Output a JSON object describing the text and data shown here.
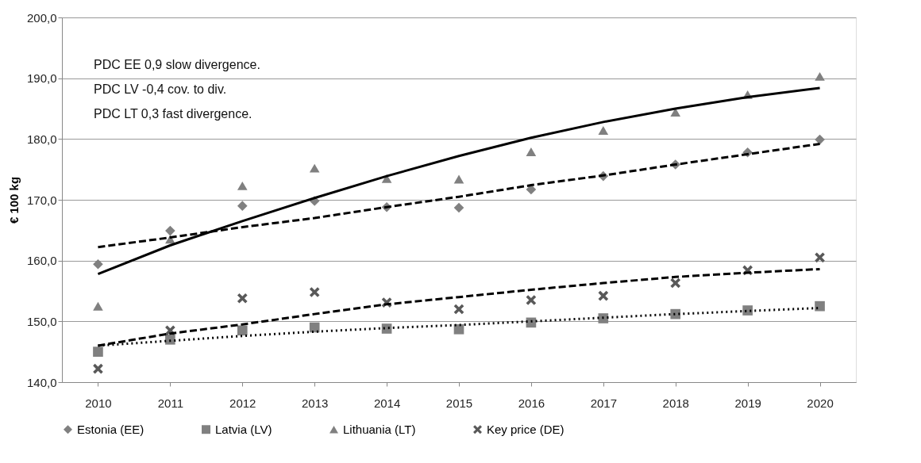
{
  "chart_data": {
    "type": "scatter",
    "ylabel": "€ 100 kg",
    "categories": [
      "2010",
      "2011",
      "2012",
      "2013",
      "2014",
      "2015",
      "2016",
      "2017",
      "2018",
      "2019",
      "2020"
    ],
    "series": [
      {
        "name": "Estonia (EE)",
        "color": "#808080",
        "marker": "diamond",
        "values": [
          159.4,
          164.9,
          169.0,
          169.8,
          168.8,
          168.7,
          171.7,
          173.9,
          175.8,
          177.8,
          179.9
        ]
      },
      {
        "name": "Latvia (LV)",
        "color": "#808080",
        "marker": "square",
        "values": [
          145.0,
          147.0,
          148.5,
          149.0,
          148.8,
          148.7,
          149.8,
          150.5,
          151.2,
          151.8,
          152.5
        ]
      },
      {
        "name": "Lithuania (LT)",
        "color": "#808080",
        "marker": "triangle",
        "values": [
          152.5,
          163.5,
          172.3,
          175.2,
          173.5,
          173.4,
          177.9,
          181.4,
          184.4,
          187.3,
          190.3
        ]
      },
      {
        "name": "Key price (DE)",
        "color": "#595959",
        "marker": "cross",
        "values": [
          142.2,
          148.5,
          153.8,
          154.8,
          153.1,
          152.0,
          153.5,
          154.2,
          156.3,
          158.4,
          160.5
        ]
      },
      {
        "type": "line",
        "color": "#000000",
        "line_style": "dashed",
        "values": [
          162.2,
          163.8,
          165.5,
          167.0,
          168.8,
          170.5,
          172.4,
          174.0,
          175.8,
          177.5,
          179.2
        ]
      },
      {
        "type": "line",
        "color": "#000000",
        "line_style": "dotted",
        "values": [
          146.0,
          146.8,
          147.6,
          148.3,
          148.9,
          149.4,
          150.0,
          150.6,
          151.2,
          151.7,
          152.2
        ]
      },
      {
        "type": "line",
        "color": "#000000",
        "line_style": "solid",
        "values": [
          157.8,
          162.5,
          166.5,
          170.3,
          173.9,
          177.2,
          180.2,
          182.8,
          185.0,
          186.9,
          188.4
        ]
      },
      {
        "type": "line",
        "color": "#000000",
        "line_style": "dashed",
        "values": [
          146.0,
          148.0,
          149.5,
          151.2,
          152.8,
          154.0,
          155.2,
          156.3,
          157.3,
          158.0,
          158.6
        ]
      }
    ],
    "ylim": [
      140,
      200
    ],
    "yticks": [
      {
        "value": 140,
        "label": "140,0"
      },
      {
        "value": 150,
        "label": "150,0"
      },
      {
        "value": 160,
        "label": "160,0"
      },
      {
        "value": 170,
        "label": "170,0"
      },
      {
        "value": 180,
        "label": "180,0"
      },
      {
        "value": 190,
        "label": "190,0"
      },
      {
        "value": 200,
        "label": "200,0"
      }
    ],
    "grid": "y",
    "legend": "bottom",
    "annotations": [
      "PDC  EE 0,9  slow divergence.",
      "PDC  LV -0,4 cov. to div.",
      "PDC  LT  0,3 fast divergence."
    ]
  }
}
